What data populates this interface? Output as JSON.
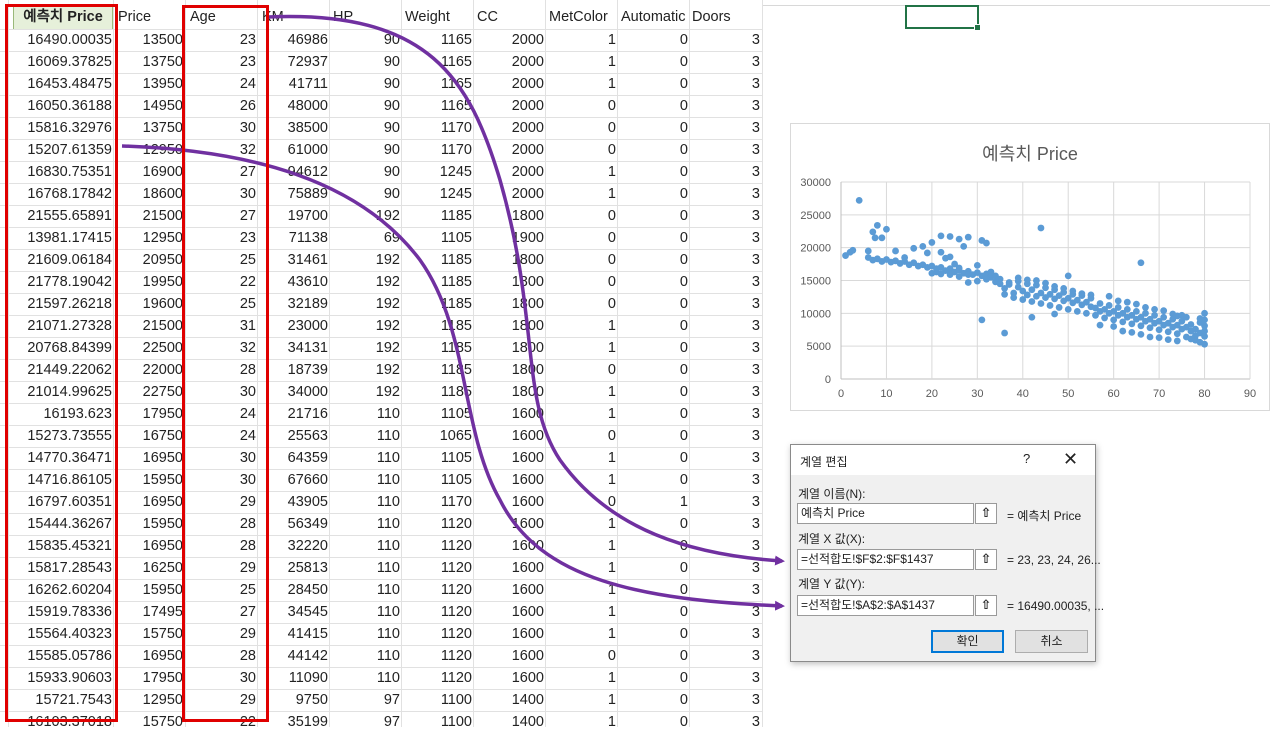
{
  "columns": [
    {
      "key": "pred",
      "label": "예측치 Price",
      "x": 13,
      "w": 100,
      "align": "center"
    },
    {
      "key": "price",
      "label": "Price",
      "x": 118,
      "w": 66,
      "align": "left"
    },
    {
      "key": "age",
      "label": "Age",
      "x": 190,
      "w": 70,
      "align": "left"
    },
    {
      "key": "km",
      "label": "KM",
      "x": 262,
      "w": 66,
      "align": "left"
    },
    {
      "key": "hp",
      "label": "HP",
      "x": 333,
      "w": 66,
      "align": "left"
    },
    {
      "key": "weight",
      "label": "Weight",
      "x": 405,
      "w": 66,
      "align": "left"
    },
    {
      "key": "cc",
      "label": "CC",
      "x": 477,
      "w": 66,
      "align": "left"
    },
    {
      "key": "metcolor",
      "label": "MetColor",
      "x": 549,
      "w": 70,
      "align": "left"
    },
    {
      "key": "automatic",
      "label": "Automatic",
      "x": 621,
      "w": 70,
      "align": "left"
    },
    {
      "key": "doors",
      "label": "Doors",
      "x": 692,
      "w": 70,
      "align": "left"
    }
  ],
  "rows": [
    [
      "16490.00035",
      "13500",
      "23",
      "46986",
      "90",
      "1165",
      "2000",
      "1",
      "0",
      "3"
    ],
    [
      "16069.37825",
      "13750",
      "23",
      "72937",
      "90",
      "1165",
      "2000",
      "1",
      "0",
      "3"
    ],
    [
      "16453.48475",
      "13950",
      "24",
      "41711",
      "90",
      "1165",
      "2000",
      "1",
      "0",
      "3"
    ],
    [
      "16050.36188",
      "14950",
      "26",
      "48000",
      "90",
      "1165",
      "2000",
      "0",
      "0",
      "3"
    ],
    [
      "15816.32976",
      "13750",
      "30",
      "38500",
      "90",
      "1170",
      "2000",
      "0",
      "0",
      "3"
    ],
    [
      "15207.61359",
      "12950",
      "32",
      "61000",
      "90",
      "1170",
      "2000",
      "0",
      "0",
      "3"
    ],
    [
      "16830.75351",
      "16900",
      "27",
      "94612",
      "90",
      "1245",
      "2000",
      "1",
      "0",
      "3"
    ],
    [
      "16768.17842",
      "18600",
      "30",
      "75889",
      "90",
      "1245",
      "2000",
      "1",
      "0",
      "3"
    ],
    [
      "21555.65891",
      "21500",
      "27",
      "19700",
      "192",
      "1185",
      "1800",
      "0",
      "0",
      "3"
    ],
    [
      "13981.17415",
      "12950",
      "23",
      "71138",
      "69",
      "1105",
      "1900",
      "0",
      "0",
      "3"
    ],
    [
      "21609.06184",
      "20950",
      "25",
      "31461",
      "192",
      "1185",
      "1800",
      "0",
      "0",
      "3"
    ],
    [
      "21778.19042",
      "19950",
      "22",
      "43610",
      "192",
      "1185",
      "1800",
      "0",
      "0",
      "3"
    ],
    [
      "21597.26218",
      "19600",
      "25",
      "32189",
      "192",
      "1185",
      "1800",
      "0",
      "0",
      "3"
    ],
    [
      "21071.27328",
      "21500",
      "31",
      "23000",
      "192",
      "1185",
      "1800",
      "1",
      "0",
      "3"
    ],
    [
      "20768.84399",
      "22500",
      "32",
      "34131",
      "192",
      "1185",
      "1800",
      "1",
      "0",
      "3"
    ],
    [
      "21449.22062",
      "22000",
      "28",
      "18739",
      "192",
      "1185",
      "1800",
      "0",
      "0",
      "3"
    ],
    [
      "21014.99625",
      "22750",
      "30",
      "34000",
      "192",
      "1185",
      "1800",
      "1",
      "0",
      "3"
    ],
    [
      "16193.623",
      "17950",
      "24",
      "21716",
      "110",
      "1105",
      "1600",
      "1",
      "0",
      "3"
    ],
    [
      "15273.73555",
      "16750",
      "24",
      "25563",
      "110",
      "1065",
      "1600",
      "0",
      "0",
      "3"
    ],
    [
      "14770.36471",
      "16950",
      "30",
      "64359",
      "110",
      "1105",
      "1600",
      "1",
      "0",
      "3"
    ],
    [
      "14716.86105",
      "15950",
      "30",
      "67660",
      "110",
      "1105",
      "1600",
      "1",
      "0",
      "3"
    ],
    [
      "16797.60351",
      "16950",
      "29",
      "43905",
      "110",
      "1170",
      "1600",
      "0",
      "1",
      "3"
    ],
    [
      "15444.36267",
      "15950",
      "28",
      "56349",
      "110",
      "1120",
      "1600",
      "1",
      "0",
      "3"
    ],
    [
      "15835.45321",
      "16950",
      "28",
      "32220",
      "110",
      "1120",
      "1600",
      "1",
      "0",
      "3"
    ],
    [
      "15817.28543",
      "16250",
      "29",
      "25813",
      "110",
      "1120",
      "1600",
      "1",
      "0",
      "3"
    ],
    [
      "16262.60204",
      "15950",
      "25",
      "28450",
      "110",
      "1120",
      "1600",
      "1",
      "0",
      "3"
    ],
    [
      "15919.78336",
      "17495",
      "27",
      "34545",
      "110",
      "1120",
      "1600",
      "1",
      "0",
      "3"
    ],
    [
      "15564.40323",
      "15750",
      "29",
      "41415",
      "110",
      "1120",
      "1600",
      "1",
      "0",
      "3"
    ],
    [
      "15585.05786",
      "16950",
      "28",
      "44142",
      "110",
      "1120",
      "1600",
      "0",
      "0",
      "3"
    ],
    [
      "15933.90603",
      "17950",
      "30",
      "11090",
      "110",
      "1120",
      "1600",
      "1",
      "0",
      "3"
    ],
    [
      "15721.7543",
      "12950",
      "29",
      "9750",
      "97",
      "1100",
      "1400",
      "1",
      "0",
      "3"
    ],
    [
      "16103.37018",
      "15750",
      "22",
      "35199",
      "97",
      "1100",
      "1400",
      "1",
      "0",
      "3"
    ]
  ],
  "chart_data": {
    "type": "scatter",
    "title": "예측치 Price",
    "xlim": [
      0,
      90
    ],
    "ylim": [
      0,
      30000
    ],
    "xticks": [
      0,
      10,
      20,
      30,
      40,
      50,
      60,
      70,
      80,
      90
    ],
    "yticks": [
      0,
      5000,
      10000,
      15000,
      20000,
      25000,
      30000
    ],
    "grid": true,
    "color": "#5b9bd5",
    "points": [
      [
        1,
        18800
      ],
      [
        2,
        19300
      ],
      [
        2.6,
        19600
      ],
      [
        4,
        27200
      ],
      [
        6,
        19500
      ],
      [
        7,
        22400
      ],
      [
        7.5,
        21500
      ],
      [
        8,
        23400
      ],
      [
        9,
        21500
      ],
      [
        10,
        22800
      ],
      [
        6,
        18500
      ],
      [
        7,
        18100
      ],
      [
        8,
        18300
      ],
      [
        9,
        17900
      ],
      [
        10,
        18200
      ],
      [
        11,
        17800
      ],
      [
        12,
        18000
      ],
      [
        13,
        17600
      ],
      [
        14,
        17900
      ],
      [
        15,
        17400
      ],
      [
        16,
        17700
      ],
      [
        17,
        17200
      ],
      [
        18,
        17400
      ],
      [
        19,
        17000
      ],
      [
        20,
        17200
      ],
      [
        21,
        16800
      ],
      [
        22,
        17000
      ],
      [
        23,
        16500
      ],
      [
        24,
        16800
      ],
      [
        25,
        16300
      ],
      [
        26,
        16600
      ],
      [
        27,
        16100
      ],
      [
        28,
        16400
      ],
      [
        29,
        15900
      ],
      [
        30,
        16200
      ],
      [
        31,
        15700
      ],
      [
        32,
        16000
      ],
      [
        33,
        15500
      ],
      [
        34,
        15700
      ],
      [
        35,
        15200
      ],
      [
        12,
        19500
      ],
      [
        14,
        18500
      ],
      [
        16,
        19900
      ],
      [
        18,
        20200
      ],
      [
        20,
        20800
      ],
      [
        22,
        21800
      ],
      [
        24,
        21700
      ],
      [
        26,
        21300
      ],
      [
        28,
        21600
      ],
      [
        31,
        21100
      ],
      [
        32,
        20700
      ],
      [
        27,
        20200
      ],
      [
        22,
        19300
      ],
      [
        24,
        18600
      ],
      [
        26,
        16900
      ],
      [
        28,
        15900
      ],
      [
        25,
        17500
      ],
      [
        30,
        17300
      ],
      [
        30,
        14900
      ],
      [
        32,
        15200
      ],
      [
        34,
        14800
      ],
      [
        33,
        16300
      ],
      [
        23,
        18400
      ],
      [
        21,
        16300
      ],
      [
        19,
        19200
      ],
      [
        36,
        13800
      ],
      [
        37,
        14400
      ],
      [
        38,
        13100
      ],
      [
        39,
        14000
      ],
      [
        40,
        13400
      ],
      [
        41,
        12800
      ],
      [
        42,
        13600
      ],
      [
        43,
        12600
      ],
      [
        44,
        13100
      ],
      [
        45,
        12400
      ],
      [
        46,
        12900
      ],
      [
        47,
        12200
      ],
      [
        48,
        12700
      ],
      [
        49,
        11900
      ],
      [
        50,
        12300
      ],
      [
        51,
        11600
      ],
      [
        52,
        12000
      ],
      [
        53,
        11300
      ],
      [
        54,
        11700
      ],
      [
        55,
        11000
      ],
      [
        36,
        12900
      ],
      [
        38,
        12400
      ],
      [
        40,
        12100
      ],
      [
        42,
        11800
      ],
      [
        44,
        11500
      ],
      [
        46,
        11200
      ],
      [
        48,
        10900
      ],
      [
        50,
        10600
      ],
      [
        52,
        10300
      ],
      [
        54,
        10000
      ],
      [
        37,
        14700
      ],
      [
        39,
        14900
      ],
      [
        41,
        14500
      ],
      [
        43,
        14300
      ],
      [
        45,
        13900
      ],
      [
        47,
        13600
      ],
      [
        49,
        13200
      ],
      [
        51,
        12900
      ],
      [
        53,
        12700
      ],
      [
        55,
        12300
      ],
      [
        56,
        10800
      ],
      [
        57,
        10300
      ],
      [
        58,
        10600
      ],
      [
        59,
        10000
      ],
      [
        60,
        10300
      ],
      [
        61,
        9700
      ],
      [
        62,
        10000
      ],
      [
        63,
        9400
      ],
      [
        64,
        9700
      ],
      [
        65,
        9100
      ],
      [
        66,
        9400
      ],
      [
        67,
        8800
      ],
      [
        68,
        9100
      ],
      [
        69,
        8500
      ],
      [
        70,
        8800
      ],
      [
        71,
        8200
      ],
      [
        72,
        8500
      ],
      [
        73,
        7900
      ],
      [
        74,
        8200
      ],
      [
        75,
        7600
      ],
      [
        76,
        7900
      ],
      [
        77,
        7300
      ],
      [
        78,
        7600
      ],
      [
        79,
        7000
      ],
      [
        80,
        7300
      ],
      [
        80,
        8100
      ],
      [
        80,
        6500
      ],
      [
        79,
        8600
      ],
      [
        78,
        6600
      ],
      [
        77,
        8300
      ],
      [
        56,
        9700
      ],
      [
        58,
        9300
      ],
      [
        60,
        9000
      ],
      [
        62,
        8700
      ],
      [
        64,
        8400
      ],
      [
        66,
        8100
      ],
      [
        68,
        7800
      ],
      [
        70,
        7500
      ],
      [
        72,
        7200
      ],
      [
        74,
        6900
      ],
      [
        57,
        11500
      ],
      [
        59,
        11200
      ],
      [
        61,
        10900
      ],
      [
        63,
        10600
      ],
      [
        65,
        10300
      ],
      [
        67,
        10000
      ],
      [
        69,
        9700
      ],
      [
        71,
        9400
      ],
      [
        73,
        9100
      ],
      [
        75,
        8800
      ],
      [
        76,
        6400
      ],
      [
        78,
        5900
      ],
      [
        80,
        5300
      ],
      [
        79,
        5600
      ],
      [
        77,
        6100
      ],
      [
        80,
        9000
      ],
      [
        79,
        9200
      ],
      [
        80,
        10000
      ],
      [
        76,
        9400
      ],
      [
        74,
        9600
      ],
      [
        50,
        15700
      ],
      [
        66,
        17700
      ],
      [
        44,
        23000
      ],
      [
        31,
        9000
      ],
      [
        36,
        7000
      ],
      [
        42,
        9400
      ],
      [
        47,
        9900
      ],
      [
        57,
        8200
      ],
      [
        60,
        8000
      ],
      [
        62,
        7300
      ],
      [
        64,
        7100
      ],
      [
        66,
        6800
      ],
      [
        68,
        6400
      ],
      [
        70,
        6300
      ],
      [
        72,
        6000
      ],
      [
        74,
        5800
      ],
      [
        59,
        12600
      ],
      [
        61,
        11900
      ],
      [
        63,
        11700
      ],
      [
        65,
        11400
      ],
      [
        67,
        10900
      ],
      [
        69,
        10600
      ],
      [
        71,
        10400
      ],
      [
        73,
        9900
      ],
      [
        75,
        9700
      ],
      [
        35,
        14500
      ],
      [
        39,
        15400
      ],
      [
        41,
        15100
      ],
      [
        43,
        15000
      ],
      [
        45,
        14600
      ],
      [
        47,
        14100
      ],
      [
        49,
        13800
      ],
      [
        51,
        13400
      ],
      [
        53,
        13000
      ],
      [
        55,
        12800
      ],
      [
        20,
        16100
      ],
      [
        22,
        16000
      ],
      [
        24,
        15900
      ],
      [
        26,
        15600
      ],
      [
        28,
        14700
      ]
    ]
  },
  "dialog": {
    "title": "계열 편집",
    "help": "?",
    "close": "✕",
    "name_label": "계열 이름(N):",
    "name_value": "예측치 Price",
    "name_preview": "= 예측치 Price",
    "x_label": "계열 X 값(X):",
    "x_value": "=선적합도!$F$2:$F$1437",
    "x_preview": "= 23, 23, 24, 26...",
    "y_label": "계열 Y 값(Y):",
    "y_value": "=선적합도!$A$2:$A$1437",
    "y_preview": "= 16490.00035, ...",
    "collapse_glyph": "⇧",
    "ok": "확인",
    "cancel": "취소"
  },
  "annotation_color": "#7030a0",
  "highlight_color": "#e00000"
}
